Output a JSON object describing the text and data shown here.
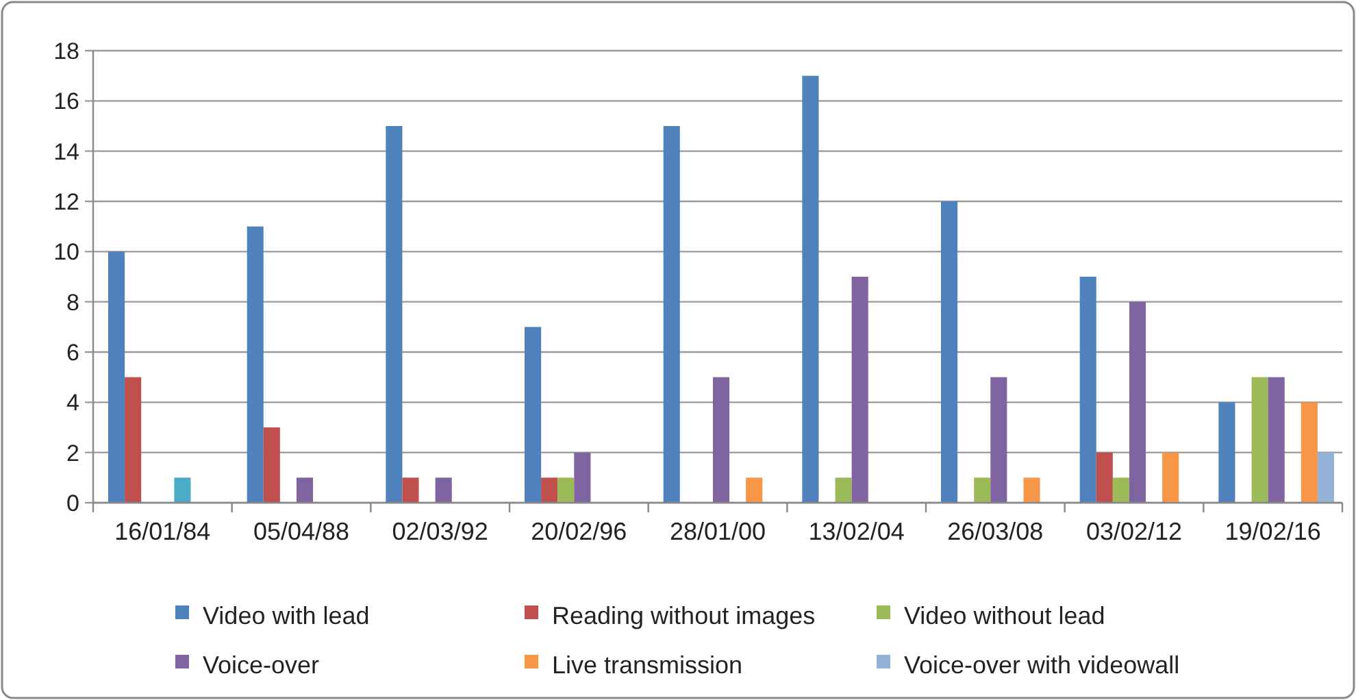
{
  "chart_data": {
    "type": "bar",
    "categories": [
      "16/01/84",
      "05/04/88",
      "02/03/92",
      "20/02/96",
      "28/01/00",
      "13/02/04",
      "26/03/08",
      "03/02/12",
      "19/02/16"
    ],
    "series": [
      {
        "name": "Video with lead",
        "color": "#4f81bd",
        "values": [
          10,
          11,
          15,
          7,
          15,
          17,
          12,
          9,
          4
        ]
      },
      {
        "name": "Reading without images",
        "color": "#c0504d",
        "values": [
          5,
          3,
          1,
          1,
          null,
          null,
          null,
          2,
          null
        ]
      },
      {
        "name": "Video without lead",
        "color": "#9bbb59",
        "values": [
          null,
          null,
          null,
          1,
          null,
          1,
          1,
          1,
          5
        ]
      },
      {
        "name": "Voice-over",
        "color": "#8064a2",
        "values": [
          null,
          1,
          1,
          2,
          5,
          9,
          5,
          8,
          5
        ]
      },
      {
        "color": "#4bacc6",
        "values": [
          1,
          null,
          null,
          null,
          null,
          null,
          null,
          null,
          null
        ]
      },
      {
        "name": "Live transmission",
        "color": "#f79646",
        "values": [
          null,
          null,
          null,
          null,
          1,
          null,
          1,
          2,
          4
        ]
      },
      {
        "name": "Voice-over with videowall",
        "color": "#95b3d7",
        "values": [
          null,
          null,
          null,
          null,
          null,
          null,
          null,
          null,
          2
        ]
      }
    ],
    "ylim": [
      0,
      18
    ],
    "yticks": [
      0,
      2,
      4,
      6,
      8,
      10,
      12,
      14,
      16,
      18
    ],
    "grid": "y",
    "legend": "bottom"
  }
}
